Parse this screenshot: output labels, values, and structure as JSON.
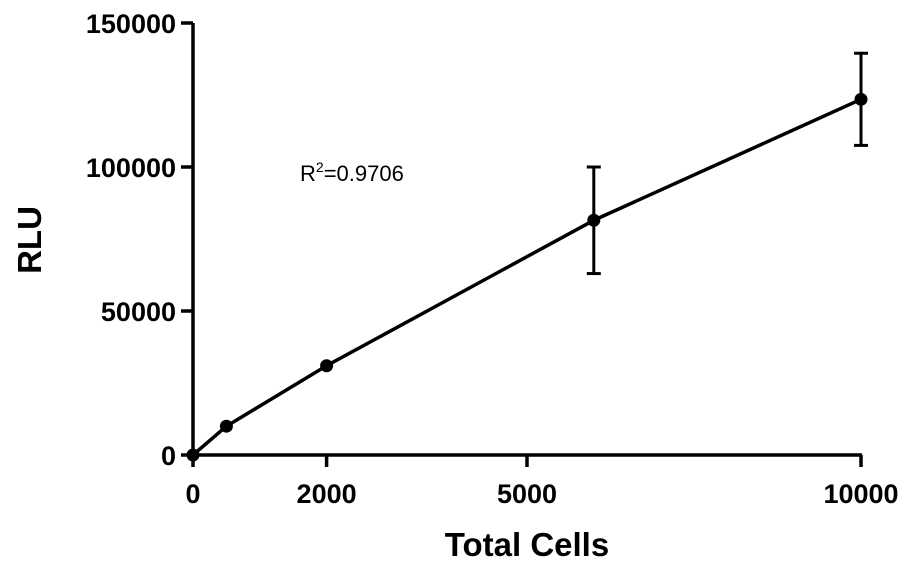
{
  "chart_data": {
    "type": "line",
    "xlabel": "Total Cells",
    "ylabel": "RLU",
    "xlim": [
      0,
      10000
    ],
    "ylim": [
      0,
      150000
    ],
    "xticks": [
      0,
      2000,
      5000,
      10000
    ],
    "yticks": [
      0,
      50000,
      100000,
      150000
    ],
    "xtick_labels": [
      "0",
      "2000",
      "5000",
      "10000"
    ],
    "ytick_labels": [
      "0",
      "50000",
      "100000",
      "150000"
    ],
    "grid": false,
    "legend": "none",
    "annotation": {
      "prefix": "R",
      "superscript": "2",
      "suffix": "=0.9706"
    },
    "series": [
      {
        "x": [
          0,
          500,
          2000,
          6000,
          10000
        ],
        "y": [
          0,
          10000,
          31000,
          81500,
          123500
        ],
        "error": [
          0,
          0,
          0,
          18500,
          16000
        ],
        "color": "#000000"
      }
    ]
  }
}
